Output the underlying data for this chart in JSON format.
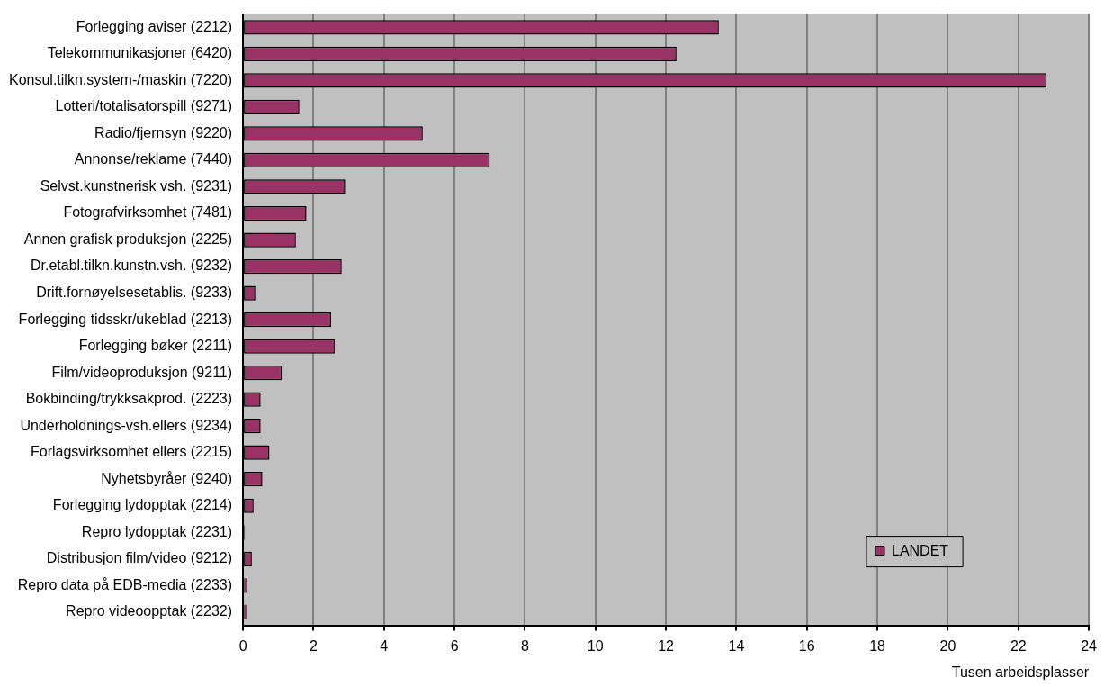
{
  "chart_data": {
    "type": "bar",
    "orientation": "horizontal",
    "xlabel": "Tusen arbeidsplasser",
    "categories": [
      "Forlegging aviser (2212)",
      "Telekommunikasjoner (6420)",
      "Konsul.tilkn.system-/maskin (7220)",
      "Lotteri/totalisatorspill (9271)",
      "Radio/fjernsyn (9220)",
      "Annonse/reklame (7440)",
      "Selvst.kunstnerisk vsh. (9231)",
      "Fotografvirksomhet (7481)",
      "Annen grafisk produksjon (2225)",
      "Dr.etabl.tilkn.kunstn.vsh. (9232)",
      "Drift.fornøyelsesetablis. (9233)",
      "Forlegging tidsskr/ukeblad (2213)",
      "Forlegging bøker (2211)",
      "Film/videoproduksjon (9211)",
      "Bokbinding/trykksakprod. (2223)",
      "Underholdnings-vsh.ellers (9234)",
      "Forlagsvirksomhet ellers (2215)",
      "Nyhetsbyråer (9240)",
      "Forlegging lydopptak (2214)",
      "Repro lydopptak (2231)",
      "Distribusjon film/video (9212)",
      "Repro data på EDB-media (2233)",
      "Repro videoopptak (2232)"
    ],
    "series": [
      {
        "name": "LANDET",
        "color": "#993366",
        "values": [
          13.5,
          12.3,
          22.8,
          1.6,
          5.1,
          7.0,
          2.9,
          1.8,
          1.5,
          2.8,
          0.35,
          2.5,
          2.6,
          1.1,
          0.5,
          0.5,
          0.75,
          0.55,
          0.3,
          0.05,
          0.25,
          0.1,
          0.1
        ]
      }
    ],
    "xlim": [
      0,
      24
    ],
    "xticks": [
      0,
      2,
      4,
      6,
      8,
      10,
      12,
      14,
      16,
      18,
      20,
      22,
      24
    ],
    "grid": "x",
    "legend": "bottom right"
  }
}
